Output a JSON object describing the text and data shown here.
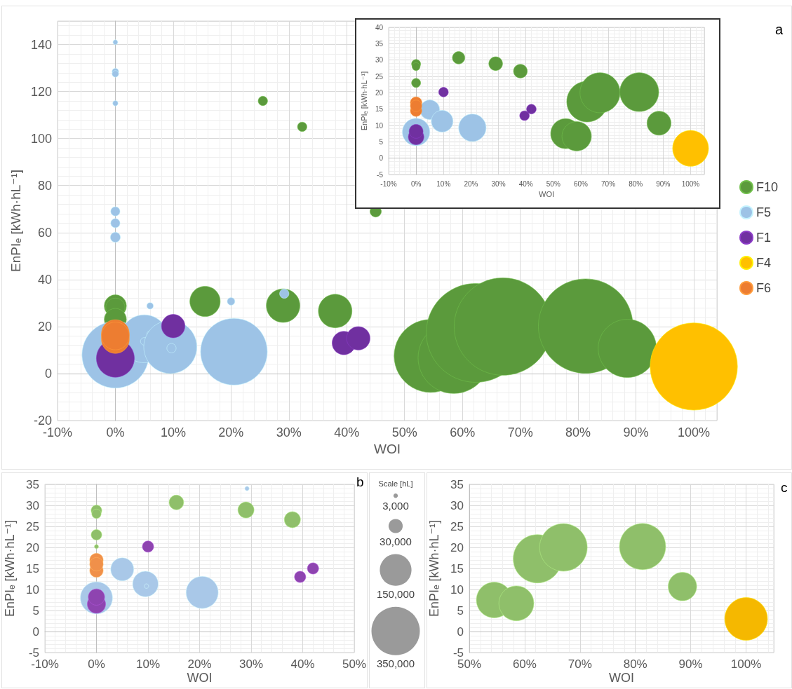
{
  "chart_data": [
    {
      "type": "bubble",
      "xlabel": "WOI",
      "ylabel": "EnPIₑ [kWh·hL⁻¹]",
      "annotations": [
        "a"
      ],
      "legend": "right",
      "grid": true,
      "xlim": [
        -10,
        104
      ],
      "xticks": [
        {
          "value": -10,
          "label": "-10%"
        },
        {
          "value": 0,
          "label": "0%"
        },
        {
          "value": 10,
          "label": "10%"
        },
        {
          "value": 20,
          "label": "20%"
        },
        {
          "value": 30,
          "label": "30%"
        },
        {
          "value": 40,
          "label": "40%"
        },
        {
          "value": 50,
          "label": "50%"
        },
        {
          "value": 60,
          "label": "60%"
        },
        {
          "value": 70,
          "label": "70%"
        },
        {
          "value": 80,
          "label": "80%"
        },
        {
          "value": 90,
          "label": "90%"
        },
        {
          "value": 100,
          "label": "100%"
        }
      ],
      "ylim": [
        -20,
        150
      ],
      "yticks": [
        -20,
        0,
        20,
        40,
        60,
        80,
        100,
        120,
        140
      ],
      "series": [
        {
          "name": "F10",
          "color": "#5b9a3c",
          "x": [
            0,
            0,
            0,
            15.5,
            25.5,
            29,
            32.3,
            38,
            45,
            54.5,
            58.5,
            62.3,
            67,
            81.3,
            88.5
          ],
          "values": [
            28.8,
            28,
            23,
            30.7,
            116,
            28.9,
            105,
            26.6,
            69,
            7.5,
            6.7,
            17.3,
            20,
            20.2,
            10.7
          ],
          "sizes": [
            0.05,
            0.038,
            0.05,
            0.094,
            0.009,
            0.115,
            0.009,
            0.115,
            0.013,
            0.544,
            0.521,
            1,
            0.971,
            0.912,
            0.347
          ]
        },
        {
          "name": "F5",
          "color": "#9dc3e6",
          "x": [
            0,
            0,
            0,
            0,
            0,
            0,
            0,
            0,
            5,
            5,
            6,
            6,
            9.5,
            9.7,
            20,
            20.5,
            29.2
          ],
          "values": [
            141,
            128.5,
            127.5,
            115,
            69,
            64,
            58,
            8,
            14.8,
            13.7,
            28.8,
            16.8,
            11.3,
            10.8,
            30.7,
            9.3,
            34
          ],
          "sizes": [
            0.0024,
            0.0044,
            0.0044,
            0.0029,
            0.0088,
            0.0088,
            0.0103,
            0.456,
            0.235,
            0.0059,
            0.0044,
            0.0044,
            0.288,
            0.0088,
            0.0059,
            0.456,
            0.0088
          ]
        },
        {
          "name": "F1",
          "color": "#7030a0",
          "x": [
            0,
            10,
            39.5,
            42
          ],
          "values": [
            6.5,
            20.2,
            13,
            15
          ],
          "sizes": [
            0.147,
            0.056,
            0.056,
            0.056
          ]
        },
        {
          "name": "F4",
          "color": "#ffc000",
          "x": [
            100
          ],
          "values": [
            3
          ],
          "sizes": [
            0.779
          ]
        },
        {
          "name": "F6",
          "color": "#ed7d31",
          "x": [
            0,
            0,
            0
          ],
          "values": [
            17,
            14.5,
            16
          ],
          "sizes": [
            0.079,
            0.079,
            0.079
          ]
        }
      ]
    },
    {
      "type": "bubble",
      "xlabel": "WOI",
      "ylabel": "EnPIₑ [kWh·hL⁻¹]",
      "grid": true,
      "xlim": [
        -10,
        105
      ],
      "xticks": [
        {
          "value": -10,
          "label": "-10%"
        },
        {
          "value": 0,
          "label": "0%"
        },
        {
          "value": 10,
          "label": "10%"
        },
        {
          "value": 20,
          "label": "20%"
        },
        {
          "value": 30,
          "label": "30%"
        },
        {
          "value": 40,
          "label": "40%"
        },
        {
          "value": 50,
          "label": "50%"
        },
        {
          "value": 60,
          "label": "60%"
        },
        {
          "value": 70,
          "label": "70%"
        },
        {
          "value": 80,
          "label": "80%"
        },
        {
          "value": 90,
          "label": "90%"
        },
        {
          "value": 100,
          "label": "100%"
        }
      ],
      "ylim": [
        -5,
        40
      ],
      "yticks": [
        -5,
        0,
        5,
        10,
        15,
        20,
        25,
        30,
        35,
        40
      ],
      "series": [
        {
          "color": "#5b9a3c",
          "x": [
            0,
            0,
            0,
            15.5,
            29,
            38,
            54.5,
            58.5,
            62.3,
            67,
            81.3,
            88.5
          ],
          "values": [
            28.8,
            28,
            23,
            30.7,
            28.9,
            26.6,
            7.5,
            6.7,
            17.3,
            20,
            20.2,
            10.7
          ],
          "sizes": [
            0.05,
            0.038,
            0.05,
            0.094,
            0.115,
            0.115,
            0.544,
            0.521,
            1,
            0.971,
            0.912,
            0.347
          ]
        },
        {
          "color": "#9dc3e6",
          "x": [
            0,
            5,
            9.5,
            20.5
          ],
          "values": [
            8,
            14.8,
            11.3,
            9.3
          ],
          "sizes": [
            0.456,
            0.235,
            0.288,
            0.456
          ]
        },
        {
          "color": "#7030a0",
          "x": [
            0,
            0,
            10,
            39.5,
            42
          ],
          "values": [
            6.5,
            8.2,
            20.2,
            13,
            15
          ],
          "sizes": [
            0.147,
            0.118,
            0.056,
            0.056,
            0.056
          ]
        },
        {
          "color": "#ffc000",
          "x": [
            100
          ],
          "values": [
            3
          ],
          "sizes": [
            0.779
          ]
        },
        {
          "color": "#ed7d31",
          "x": [
            0,
            0,
            0
          ],
          "values": [
            17,
            14.5,
            16
          ],
          "sizes": [
            0.079,
            0.079,
            0.079
          ]
        }
      ]
    },
    {
      "type": "bubble",
      "xlabel": "WOI",
      "ylabel": "EnPIₑ [kWh·hL⁻¹]",
      "annotations": [
        "b"
      ],
      "grid": true,
      "legend_title": "Scale [hL]",
      "size_legend": [
        {
          "value": 3000,
          "label": "3,000"
        },
        {
          "value": 30000,
          "label": "30,000"
        },
        {
          "value": 150000,
          "label": "150,000"
        },
        {
          "value": 350000,
          "label": "350,000"
        }
      ],
      "xlim": [
        -10,
        50
      ],
      "xticks": [
        {
          "value": -10,
          "label": "-10%"
        },
        {
          "value": 0,
          "label": "0%"
        },
        {
          "value": 10,
          "label": "10%"
        },
        {
          "value": 20,
          "label": "20%"
        },
        {
          "value": 30,
          "label": "30%"
        },
        {
          "value": 40,
          "label": "40%"
        },
        {
          "value": 50,
          "label": "50%"
        }
      ],
      "ylim": [
        -5,
        35
      ],
      "yticks": [
        -5,
        0,
        5,
        10,
        15,
        20,
        25,
        30,
        35
      ],
      "series": [
        {
          "color": "#8fbf6a",
          "x": [
            0,
            0,
            0,
            0,
            15.5,
            29,
            38
          ],
          "values": [
            28.8,
            28,
            23,
            20.2,
            30.7,
            28.9,
            26.6
          ],
          "sizes": [
            17000,
            13000,
            17000,
            2500,
            32000,
            39000,
            39000
          ]
        },
        {
          "color": "#a9c8e8",
          "x": [
            0,
            5,
            9.5,
            9.7,
            20.5,
            29.2
          ],
          "values": [
            8,
            14.8,
            11.3,
            10.8,
            9.3,
            34
          ],
          "sizes": [
            155000,
            80000,
            98000,
            3000,
            155000,
            3000
          ]
        },
        {
          "color": "#8e44b0",
          "x": [
            0,
            0,
            10,
            39.5,
            42
          ],
          "values": [
            6.5,
            8.2,
            20.2,
            13,
            15
          ],
          "sizes": [
            50000,
            40000,
            19000,
            19000,
            19000
          ]
        },
        {
          "color": "#f0904a",
          "x": [
            0,
            0,
            0
          ],
          "values": [
            17,
            14.5,
            16
          ],
          "sizes": [
            27000,
            27000,
            27000
          ]
        }
      ]
    },
    {
      "type": "bubble",
      "xlabel": "WOI",
      "ylabel": "EnPIₑ [kWh·hL⁻¹]",
      "annotations": [
        "c"
      ],
      "grid": true,
      "xlim": [
        50,
        105
      ],
      "xticks": [
        {
          "value": 50,
          "label": "50%"
        },
        {
          "value": 60,
          "label": "60%"
        },
        {
          "value": 70,
          "label": "70%"
        },
        {
          "value": 80,
          "label": "80%"
        },
        {
          "value": 90,
          "label": "90%"
        },
        {
          "value": 100,
          "label": "100%"
        }
      ],
      "ylim": [
        -5,
        35
      ],
      "yticks": [
        -5,
        0,
        5,
        10,
        15,
        20,
        25,
        30,
        35
      ],
      "series": [
        {
          "color": "#8fbf6a",
          "x": [
            54.5,
            58.5,
            62.3,
            67,
            81.3,
            88.5
          ],
          "values": [
            7.5,
            6.7,
            17.3,
            20,
            20.2,
            10.7
          ],
          "sizes": [
            0.544,
            0.521,
            1,
            0.971,
            0.912,
            0.347
          ]
        },
        {
          "color": "#f5b800",
          "x": [
            100
          ],
          "values": [
            3
          ],
          "sizes": [
            0.779
          ]
        }
      ]
    }
  ]
}
